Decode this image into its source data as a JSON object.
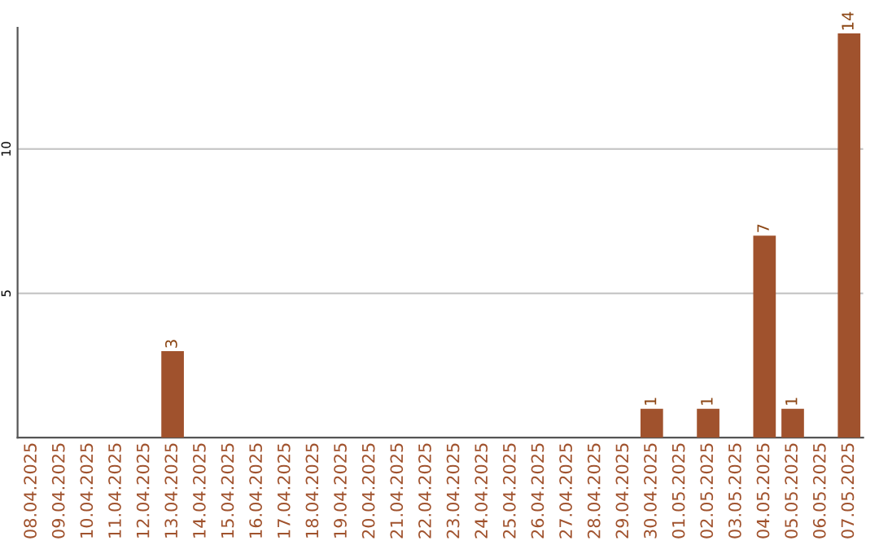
{
  "chart_data": {
    "type": "bar",
    "categories": [
      "08.04.2025",
      "09.04.2025",
      "10.04.2025",
      "11.04.2025",
      "12.04.2025",
      "13.04.2025",
      "14.04.2025",
      "15.04.2025",
      "16.04.2025",
      "17.04.2025",
      "18.04.2025",
      "19.04.2025",
      "20.04.2025",
      "21.04.2025",
      "22.04.2025",
      "23.04.2025",
      "24.04.2025",
      "25.04.2025",
      "26.04.2025",
      "27.04.2025",
      "28.04.2025",
      "29.04.2025",
      "30.04.2025",
      "01.05.2025",
      "02.05.2025",
      "03.05.2025",
      "04.05.2025",
      "05.05.2025",
      "06.05.2025",
      "07.05.2025"
    ],
    "values": [
      0,
      0,
      0,
      0,
      0,
      3,
      0,
      0,
      0,
      0,
      0,
      0,
      0,
      0,
      0,
      0,
      0,
      0,
      0,
      0,
      0,
      0,
      1,
      0,
      1,
      0,
      7,
      1,
      0,
      14
    ],
    "value_labels": [
      null,
      null,
      null,
      null,
      null,
      "3",
      null,
      null,
      null,
      null,
      null,
      null,
      null,
      null,
      null,
      null,
      null,
      null,
      null,
      null,
      null,
      null,
      "1",
      null,
      "1",
      null,
      "7",
      "1",
      null,
      "14"
    ],
    "color": "#a0522d",
    "ylim": [
      0,
      14.2
    ],
    "yticks": [
      5,
      10
    ],
    "grid": "y"
  }
}
